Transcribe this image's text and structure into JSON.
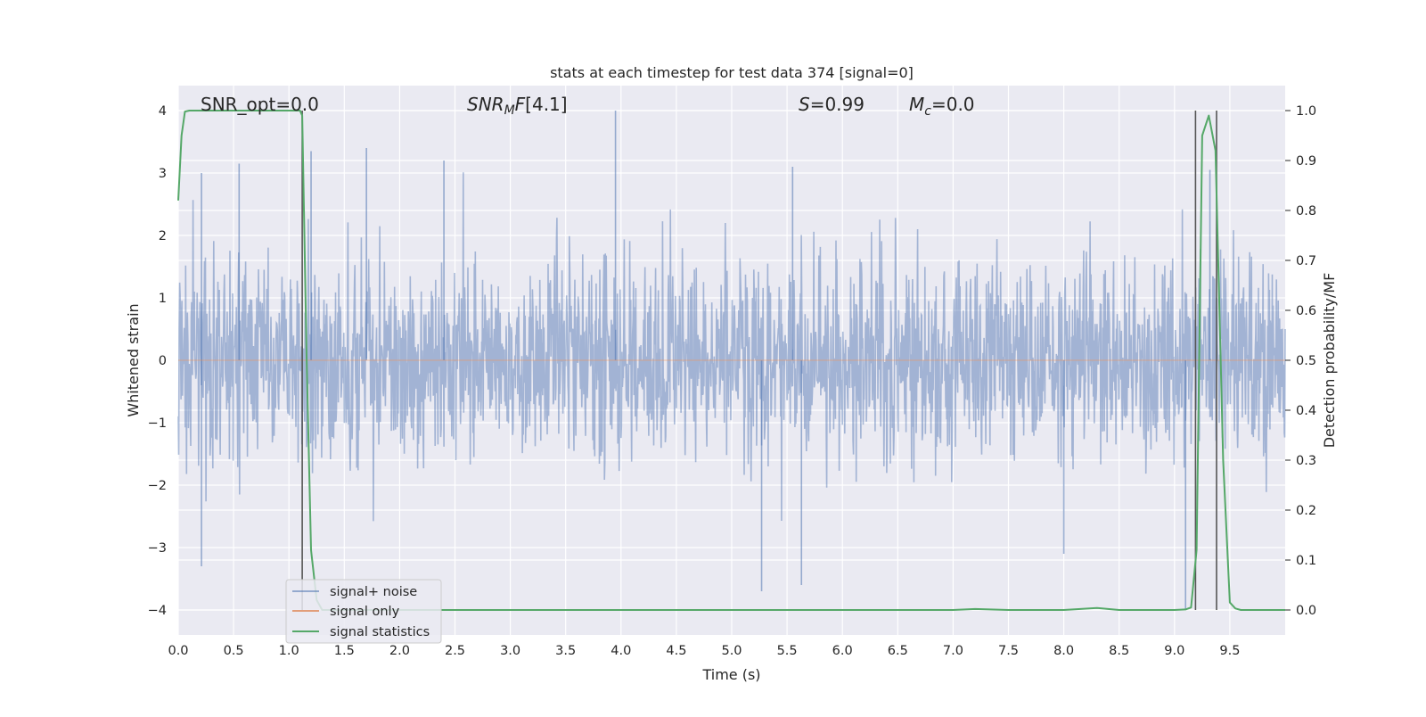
{
  "chart_data": {
    "type": "line",
    "title": "stats at each timestep for test data 374 [signal=0]",
    "xlabel": "Time (s)",
    "ylabel": "Whitened strain",
    "y2label": "Detection probability/MF",
    "xlim": [
      0.0,
      10.0
    ],
    "ylim": [
      -4.4,
      4.4
    ],
    "y2lim": [
      -0.05,
      1.05
    ],
    "xticks": [
      "0.0",
      "0.5",
      "1.0",
      "1.5",
      "2.0",
      "2.5",
      "3.0",
      "3.5",
      "4.0",
      "4.5",
      "5.0",
      "5.5",
      "6.0",
      "6.5",
      "7.0",
      "7.5",
      "8.0",
      "8.5",
      "9.0",
      "9.5"
    ],
    "yticks": [
      "4",
      "3",
      "2",
      "1",
      "0",
      "−1",
      "−2",
      "−3",
      "−4"
    ],
    "y2ticks": [
      "1.0",
      "0.9",
      "0.8",
      "0.7",
      "0.6",
      "0.5",
      "0.4",
      "0.3",
      "0.2",
      "0.1",
      "0.0"
    ],
    "annotations": {
      "snr_opt": "SNR_opt=0.0",
      "snr_mf": "[4.1]",
      "s": "=0.99",
      "mc": "=0.0"
    },
    "legend": {
      "placement": "lower-left",
      "entries": [
        {
          "label": "signal+ noise",
          "color": "#4c72b0"
        },
        {
          "label": "signal only",
          "color": "#dd8452"
        },
        {
          "label": "signal statistics",
          "color": "#55a868"
        }
      ]
    },
    "vertical_lines_x": [
      1.12,
      9.19,
      9.38
    ],
    "series": [
      {
        "name": "signal+ noise",
        "color": "#4c72b0",
        "style": "dense noise",
        "noise_std": 0.8,
        "peaks": [
          {
            "x": 0.21,
            "y": -3.3
          },
          {
            "x": 0.21,
            "y": 3.0
          },
          {
            "x": 0.55,
            "y": 3.15
          },
          {
            "x": 1.2,
            "y": 3.35
          },
          {
            "x": 1.7,
            "y": 3.4
          },
          {
            "x": 2.4,
            "y": 3.2
          },
          {
            "x": 3.95,
            "y": 4.0
          },
          {
            "x": 5.27,
            "y": -3.7
          },
          {
            "x": 5.63,
            "y": -3.6
          },
          {
            "x": 5.55,
            "y": 3.1
          },
          {
            "x": 8.0,
            "y": -3.1
          },
          {
            "x": 9.1,
            "y": -4.0
          },
          {
            "x": 9.32,
            "y": 3.05
          }
        ]
      },
      {
        "name": "signal only",
        "color": "#dd8452",
        "x": [
          0.0,
          10.0
        ],
        "y": [
          0.0,
          0.0
        ]
      },
      {
        "name": "signal statistics",
        "color": "#55a868",
        "axis": "right",
        "x": [
          0.0,
          0.03,
          0.06,
          0.1,
          0.5,
          1.0,
          1.1,
          1.12,
          1.16,
          1.2,
          1.25,
          1.3,
          2.0,
          3.0,
          4.0,
          5.0,
          6.0,
          7.0,
          7.2,
          7.5,
          8.0,
          8.3,
          8.5,
          9.0,
          9.1,
          9.15,
          9.2,
          9.25,
          9.31,
          9.37,
          9.44,
          9.5,
          9.55,
          9.6,
          10.0
        ],
        "y": [
          0.82,
          0.95,
          0.998,
          1.0,
          1.0,
          1.0,
          1.0,
          0.99,
          0.5,
          0.12,
          0.02,
          0.0,
          0.0,
          0.0,
          0.0,
          0.0,
          0.0,
          0.0,
          0.002,
          0.0,
          0.0,
          0.004,
          0.0,
          0.0,
          0.001,
          0.005,
          0.12,
          0.95,
          0.99,
          0.92,
          0.3,
          0.015,
          0.003,
          0.0,
          0.0
        ]
      }
    ]
  }
}
